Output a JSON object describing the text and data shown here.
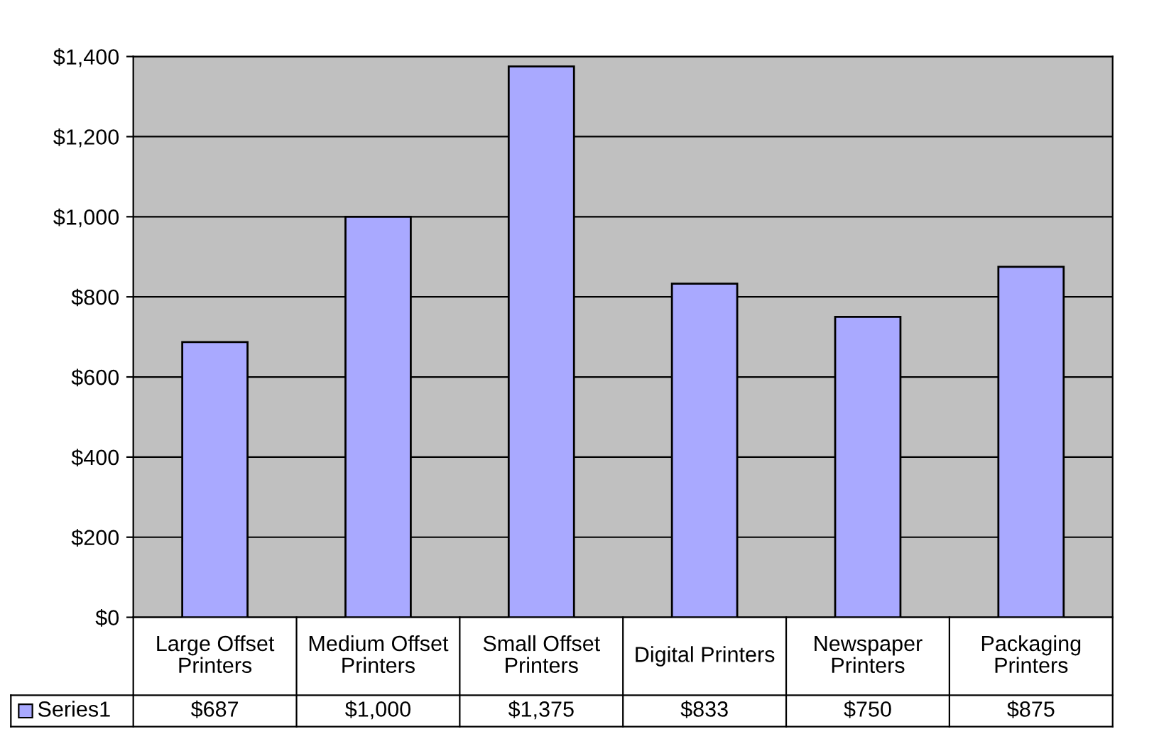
{
  "chart_data": {
    "type": "bar",
    "categories": [
      "Large Offset\nPrinters",
      "Medium Offset\nPrinters",
      "Small Offset\nPrinters",
      "Digital Printers",
      "Newspaper\nPrinters",
      "Packaging\nPrinters"
    ],
    "series": [
      {
        "name": "Series1",
        "color": "#a9a9ff",
        "values": [
          687,
          1000,
          1375,
          833,
          750,
          875
        ],
        "value_labels": [
          "$687",
          "$1,000",
          "$1,375",
          "$833",
          "$750",
          "$875"
        ]
      }
    ],
    "ylim": [
      0,
      1400
    ],
    "yticks": [
      {
        "value": 0,
        "label": "$0"
      },
      {
        "value": 200,
        "label": "$200"
      },
      {
        "value": 400,
        "label": "$400"
      },
      {
        "value": 600,
        "label": "$600"
      },
      {
        "value": 800,
        "label": "$800"
      },
      {
        "value": 1000,
        "label": "$1,000"
      },
      {
        "value": 1200,
        "label": "$1,200"
      },
      {
        "value": 1400,
        "label": "$1,400"
      }
    ],
    "grid": "y",
    "legend": "bottom left"
  }
}
